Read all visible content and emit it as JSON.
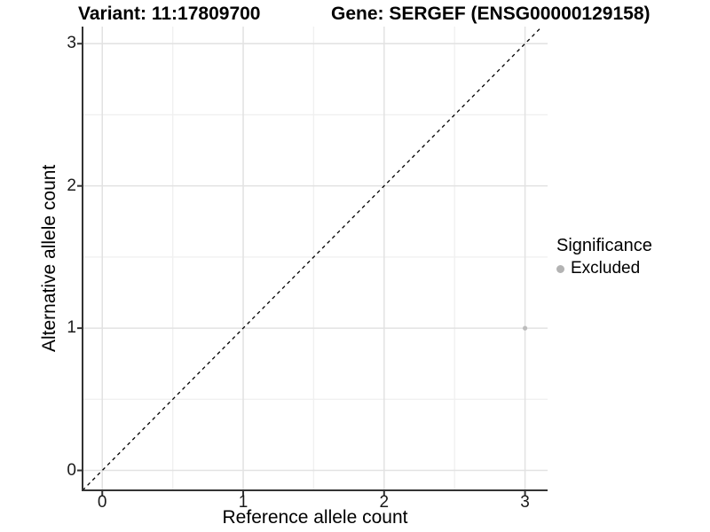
{
  "chart_data": {
    "type": "scatter",
    "titles": {
      "variant": "Variant: 11:17809700",
      "gene": "Gene: SERGEF (ENSG00000129158)"
    },
    "xlabel": "Reference allele count",
    "ylabel": "Alternative allele count",
    "xlim": [
      -0.14,
      3.16
    ],
    "ylim": [
      -0.14,
      3.12
    ],
    "xticks": [
      0,
      1,
      2,
      3
    ],
    "yticks": [
      0,
      1,
      2,
      3
    ],
    "xminor": [
      0.5,
      1.5,
      2.5
    ],
    "yminor": [
      0.5,
      1.5,
      2.5
    ],
    "grid": {
      "on": true,
      "major_color": "#e2e2e2",
      "minor_color": "#f0f0f0"
    },
    "axis_line_color": "#333333",
    "identity_line": {
      "style": "dashed",
      "color": "#000000",
      "from": -0.14,
      "to": 3.12
    },
    "series": [
      {
        "name": "Excluded",
        "color": "#bdbdbd",
        "points": [
          {
            "x": 3,
            "y": 1
          }
        ]
      }
    ],
    "legend": {
      "title": "Significance",
      "position": "right",
      "items": [
        {
          "label": "Excluded",
          "color": "#b3b3b3",
          "shape": "circle"
        }
      ]
    }
  }
}
